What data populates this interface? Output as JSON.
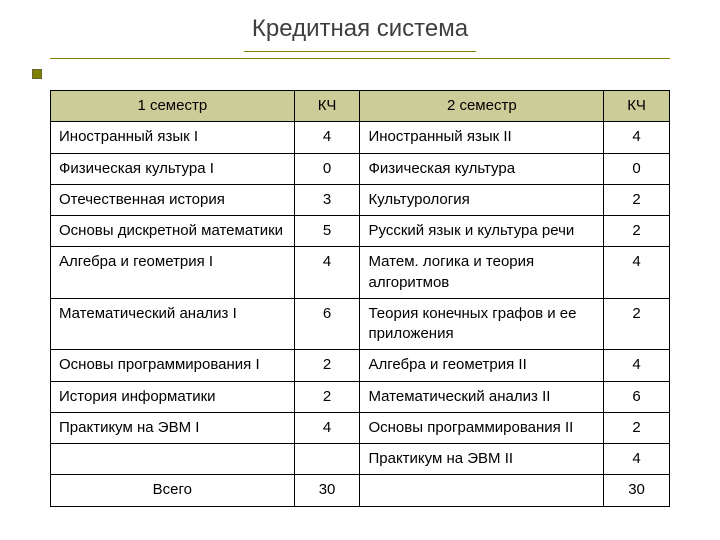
{
  "title": "Кредитная система",
  "headers": {
    "sem1": "1 семестр",
    "kch1": "КЧ",
    "sem2": "2 семестр",
    "kch2": "КЧ"
  },
  "rows": [
    {
      "s1": "Иностранный язык I",
      "k1": "4",
      "s2": "Иностранный язык II",
      "k2": "4"
    },
    {
      "s1": "Физическая культура  I",
      "k1": "0",
      "s2": "Физическая культура",
      "k2": "0"
    },
    {
      "s1": "Отечественная история",
      "k1": "3",
      "s2": "Культурология",
      "k2": "2"
    },
    {
      "s1": "Основы дискретной математики",
      "k1": "5",
      "s2": "Русский язык и культура речи",
      "k2": "2"
    },
    {
      "s1": "Алгебра и геометрия I",
      "k1": "4",
      "s2": "Матем. логика и теория алгоритмов",
      "k2": "4"
    },
    {
      "s1": "Математический анализ I",
      "k1": "6",
      "s2": "Теория конечных графов и ее приложения",
      "k2": "2"
    },
    {
      "s1": "Основы программирования I",
      "k1": "2",
      "s2": "Алгебра и геометрия II",
      "k2": "4"
    },
    {
      "s1": "История информатики",
      "k1": "2",
      "s2": "Математический анализ II",
      "k2": "6"
    },
    {
      "s1": "Практикум на ЭВМ I",
      "k1": "4",
      "s2": "Основы программирования II",
      "k2": "2"
    }
  ],
  "extraRow": {
    "s2": "Практикум на ЭВМ II",
    "k2": "4"
  },
  "totals": {
    "label": "Всего",
    "k1": "30",
    "k2": "30"
  },
  "style": {
    "type": "table",
    "header_bg": "#cccc99",
    "border_color": "#000000",
    "accent_color": "#808000",
    "background_color": "#ffffff",
    "text_color": "#000000",
    "title_color": "#3f3f3f",
    "title_fontsize": 24,
    "cell_fontsize": 15,
    "columns": [
      "subject1",
      "credits1",
      "subject2",
      "credits2"
    ],
    "col_widths_pct": [
      37,
      10,
      37,
      10
    ],
    "alignment": {
      "subject": "left",
      "credits": "center",
      "header": "center"
    }
  }
}
